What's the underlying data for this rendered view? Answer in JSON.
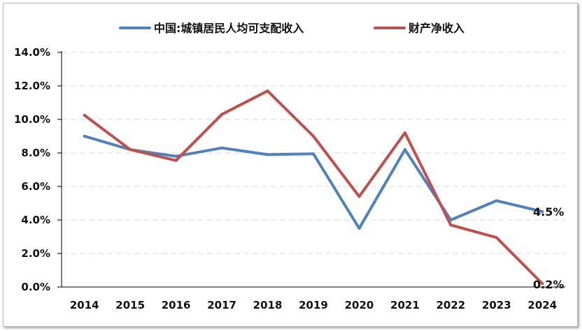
{
  "chart_data": {
    "type": "line",
    "categories": [
      "2014",
      "2015",
      "2016",
      "2017",
      "2018",
      "2019",
      "2020",
      "2021",
      "2022",
      "2023",
      "2024"
    ],
    "series": [
      {
        "name": "中国:城镇居民人均可支配收入",
        "color": "#4f81bd",
        "values": [
          9.0,
          8.2,
          7.8,
          8.3,
          7.9,
          7.95,
          3.5,
          8.2,
          4.0,
          5.15,
          4.5
        ]
      },
      {
        "name": "财产净收入",
        "color": "#c0504d",
        "values": [
          10.25,
          8.2,
          7.55,
          10.3,
          11.7,
          9.0,
          5.4,
          9.2,
          3.7,
          2.95,
          0.2
        ]
      }
    ],
    "ylim": [
      0,
      14
    ],
    "yticks": [
      0,
      2,
      4,
      6,
      8,
      10,
      12,
      14
    ],
    "ytick_labels": [
      "0.0%",
      "2.0%",
      "4.0%",
      "6.0%",
      "8.0%",
      "10.0%",
      "12.0%",
      "14.0%"
    ],
    "xlabel": "",
    "ylabel": "",
    "grid": "horizontal dashed",
    "legend_position": "top",
    "end_labels": [
      "4.5%",
      "0.2%"
    ]
  }
}
